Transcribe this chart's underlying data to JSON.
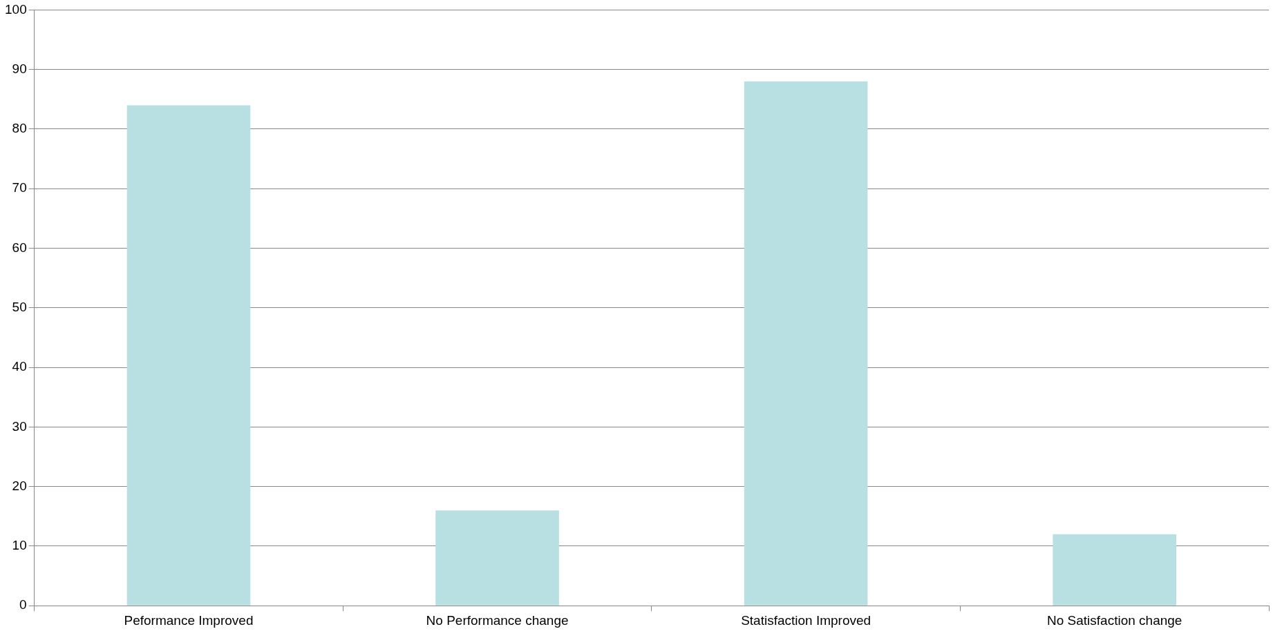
{
  "chart_data": {
    "type": "bar",
    "categories": [
      "Peformance Improved",
      "No Performance change",
      "Statisfaction Improved",
      "No Satisfaction change"
    ],
    "values": [
      84,
      16,
      88,
      12
    ],
    "color": "#b8dfe2",
    "ylim": [
      0,
      100
    ],
    "yticks": [
      0,
      10,
      20,
      30,
      40,
      50,
      60,
      70,
      80,
      90,
      100
    ],
    "grid": "y"
  }
}
